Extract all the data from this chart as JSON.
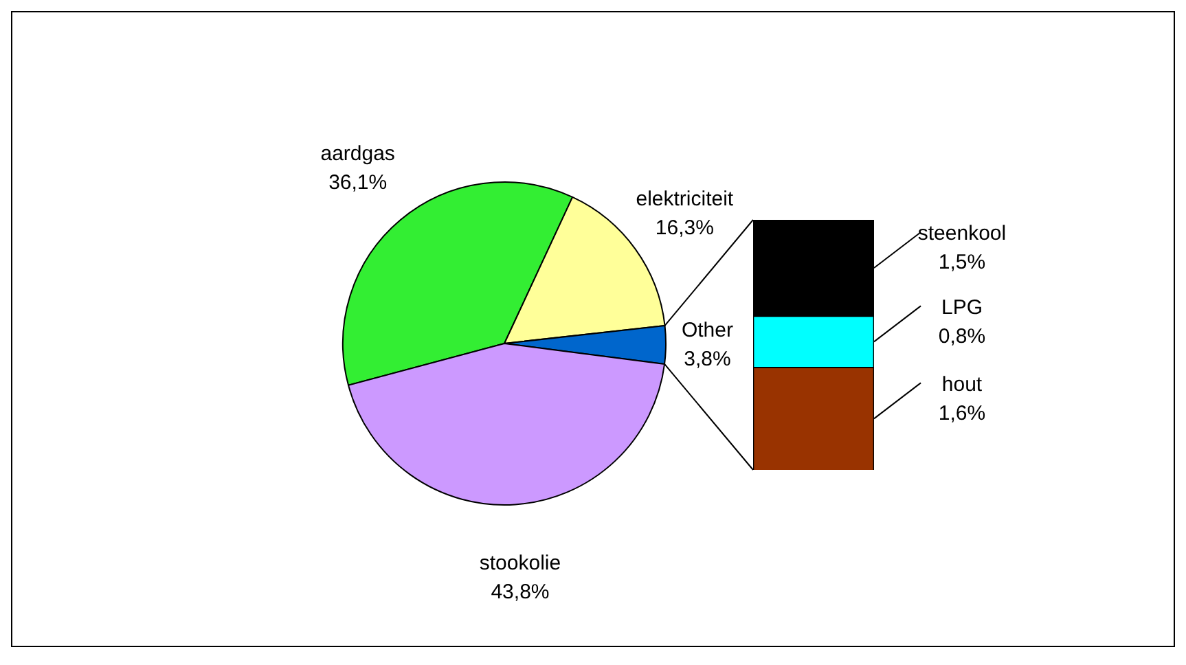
{
  "chart_data": [
    {
      "type": "pie",
      "categories": [
        "aardgas",
        "elektriciteit",
        "Other",
        "stookolie"
      ],
      "values": [
        36.1,
        16.3,
        3.8,
        43.8
      ],
      "colors": [
        "#33ee33",
        "#ffff99",
        "#0066cc",
        "#cc99ff"
      ],
      "value_labels": [
        "36,1%",
        "16,3%",
        "3,8%",
        "43,8%"
      ]
    },
    {
      "type": "bar",
      "stacked": true,
      "categories": [
        null
      ],
      "series": [
        {
          "name": "hout",
          "color": "#993300",
          "values": [
            1.6
          ],
          "value_labels": [
            "1,6%"
          ]
        },
        {
          "name": "LPG",
          "color": "#00ffff",
          "values": [
            0.8
          ],
          "value_labels": [
            "0,8%"
          ]
        },
        {
          "name": "steenkool",
          "color": "#000000",
          "values": [
            1.5
          ],
          "value_labels": [
            "1,5%"
          ]
        }
      ]
    }
  ]
}
